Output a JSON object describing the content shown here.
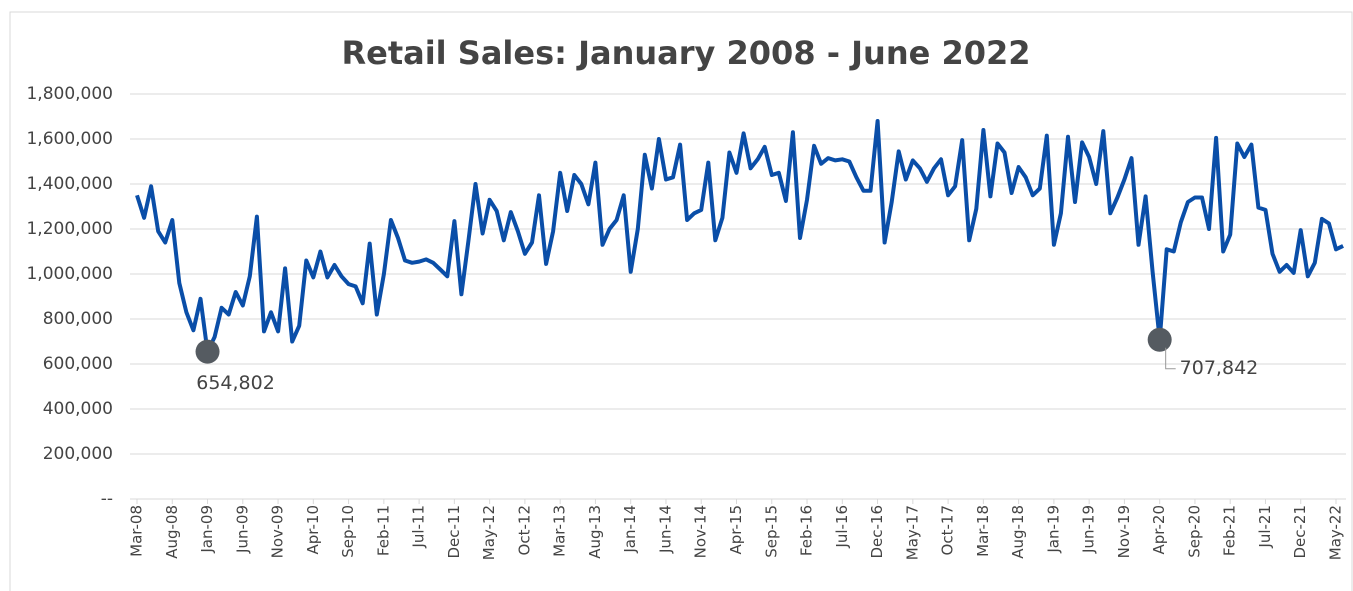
{
  "chart_data": {
    "type": "line",
    "title": "Retail Sales: January 2008 - June 2022",
    "categories": [
      "Mar-08",
      null,
      null,
      null,
      null,
      "Aug-08",
      null,
      null,
      null,
      null,
      "Jan-09",
      null,
      null,
      null,
      null,
      "Jun-09",
      null,
      null,
      null,
      null,
      "Nov-09",
      null,
      null,
      null,
      null,
      "Apr-10",
      null,
      null,
      null,
      null,
      "Sep-10",
      null,
      null,
      null,
      null,
      "Feb-11",
      null,
      null,
      null,
      null,
      "Jul-11",
      null,
      null,
      null,
      null,
      "Dec-11",
      null,
      null,
      null,
      null,
      "May-12",
      null,
      null,
      null,
      null,
      "Oct-12",
      null,
      null,
      null,
      null,
      "Mar-13",
      null,
      null,
      null,
      null,
      "Aug-13",
      null,
      null,
      null,
      null,
      "Jan-14",
      null,
      null,
      null,
      null,
      "Jun-14",
      null,
      null,
      null,
      null,
      "Nov-14",
      null,
      null,
      null,
      null,
      "Apr-15",
      null,
      null,
      null,
      null,
      "Sep-15",
      null,
      null,
      null,
      null,
      "Feb-16",
      null,
      null,
      null,
      null,
      "Jul-16",
      null,
      null,
      null,
      null,
      "Dec-16",
      null,
      null,
      null,
      null,
      "May-17",
      null,
      null,
      null,
      null,
      "Oct-17",
      null,
      null,
      null,
      null,
      "Mar-18",
      null,
      null,
      null,
      null,
      "Aug-18",
      null,
      null,
      null,
      null,
      "Jan-19",
      null,
      null,
      null,
      null,
      "Jun-19",
      null,
      null,
      null,
      null,
      "Nov-19",
      null,
      null,
      null,
      null,
      "Apr-20",
      null,
      null,
      null,
      null,
      "Sep-20",
      null,
      null,
      null,
      null,
      "Feb-21",
      null,
      null,
      null,
      null,
      "Jul-21",
      null,
      null,
      null,
      null,
      "Dec-21",
      null,
      null,
      null,
      null,
      "May-22",
      null
    ],
    "values": [
      1350000,
      1250000,
      1390000,
      1190000,
      1140000,
      1240000,
      960000,
      830000,
      750000,
      890000,
      654802,
      720000,
      850000,
      820000,
      920000,
      860000,
      990000,
      1255000,
      745000,
      830000,
      745000,
      1025000,
      700000,
      770000,
      1060000,
      985000,
      1100000,
      985000,
      1040000,
      990000,
      955000,
      945000,
      870000,
      1135000,
      820000,
      1000000,
      1240000,
      1160000,
      1060000,
      1050000,
      1055000,
      1065000,
      1050000,
      1020000,
      990000,
      1235000,
      910000,
      1150000,
      1400000,
      1180000,
      1330000,
      1280000,
      1150000,
      1275000,
      1190000,
      1090000,
      1140000,
      1350000,
      1045000,
      1190000,
      1450000,
      1280000,
      1440000,
      1400000,
      1310000,
      1495000,
      1130000,
      1200000,
      1240000,
      1350000,
      1010000,
      1200000,
      1530000,
      1380000,
      1600000,
      1420000,
      1430000,
      1575000,
      1240000,
      1270000,
      1285000,
      1495000,
      1150000,
      1250000,
      1540000,
      1450000,
      1625000,
      1470000,
      1510000,
      1565000,
      1440000,
      1450000,
      1325000,
      1630000,
      1160000,
      1330000,
      1570000,
      1490000,
      1515000,
      1505000,
      1510000,
      1500000,
      1430000,
      1370000,
      1370000,
      1680000,
      1140000,
      1320000,
      1545000,
      1420000,
      1505000,
      1470000,
      1410000,
      1470000,
      1510000,
      1350000,
      1390000,
      1595000,
      1150000,
      1290000,
      1640000,
      1345000,
      1580000,
      1540000,
      1360000,
      1475000,
      1430000,
      1350000,
      1380000,
      1615000,
      1130000,
      1270000,
      1610000,
      1320000,
      1585000,
      1520000,
      1400000,
      1635000,
      1270000,
      1340000,
      1420000,
      1515000,
      1130000,
      1345000,
      1010000,
      707842,
      1110000,
      1100000,
      1230000,
      1320000,
      1340000,
      1340000,
      1200000,
      1605000,
      1100000,
      1175000,
      1580000,
      1520000,
      1575000,
      1295000,
      1285000,
      1090000,
      1010000,
      1040000,
      1005000,
      1195000,
      990000,
      1050000,
      1245000,
      1225000,
      1110000,
      1125000
    ],
    "value_labels": [
      null,
      null,
      null,
      null,
      null,
      null,
      null,
      null,
      null,
      null,
      "654,802",
      null,
      null,
      null,
      null,
      null,
      null,
      null,
      null,
      null,
      null,
      null,
      null,
      null,
      null,
      null,
      null,
      null,
      null,
      null,
      null,
      null,
      null,
      null,
      null,
      null,
      null,
      null,
      null,
      null,
      null,
      null,
      null,
      null,
      null,
      null,
      null,
      null,
      null,
      null,
      null,
      null,
      null,
      null,
      null,
      null,
      null,
      null,
      null,
      null,
      null,
      null,
      null,
      null,
      null,
      null,
      null,
      null,
      null,
      null,
      null,
      null,
      null,
      null,
      null,
      null,
      null,
      null,
      null,
      null,
      null,
      null,
      null,
      null,
      null,
      null,
      null,
      null,
      null,
      null,
      null,
      null,
      null,
      null,
      null,
      null,
      null,
      null,
      null,
      null,
      null,
      null,
      null,
      null,
      null,
      null,
      null,
      null,
      null,
      null,
      null,
      null,
      null,
      null,
      null,
      null,
      null,
      null,
      null,
      null,
      null,
      null,
      null,
      null,
      null,
      null,
      null,
      null,
      null,
      null,
      null,
      null,
      null,
      null,
      null,
      null,
      null,
      null,
      null,
      null,
      null,
      null,
      null,
      null,
      null,
      "707,842",
      null,
      null,
      null,
      null,
      null,
      null,
      null,
      null,
      null,
      null,
      null,
      null,
      null,
      null,
      null,
      null,
      null,
      null,
      null,
      null,
      null,
      null,
      null,
      null,
      null,
      null
    ],
    "color": "#0a4ea8",
    "marker_color": "#555b61",
    "ylim": [
      0,
      1800000
    ],
    "yticks": [
      {
        "value": 0,
        "label": "--"
      },
      {
        "value": 200000,
        "label": "200,000"
      },
      {
        "value": 400000,
        "label": "400,000"
      },
      {
        "value": 600000,
        "label": "600,000"
      },
      {
        "value": 800000,
        "label": "800,000"
      },
      {
        "value": 1000000,
        "label": "1,000,000"
      },
      {
        "value": 1200000,
        "label": "1,200,000"
      },
      {
        "value": 1400000,
        "label": "1,400,000"
      },
      {
        "value": 1600000,
        "label": "1,600,000"
      },
      {
        "value": 1800000,
        "label": "1,800,000"
      }
    ],
    "grid": true
  }
}
